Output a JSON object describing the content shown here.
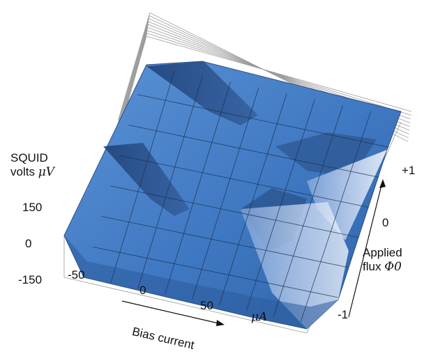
{
  "chart_data": {
    "type": "surface",
    "title": "",
    "zlabel": {
      "line1": "SQUID",
      "line2_text": "volts ",
      "line2_unit": "μV"
    },
    "xlabel": "Bias current",
    "xunit": "μA",
    "ylabel": {
      "line1": "Applied",
      "line2_text": "flux ",
      "line2_unit": "Φ0"
    },
    "z_ticks": [
      "150",
      "0",
      "-150"
    ],
    "x_ticks": [
      "-50",
      "0",
      "50"
    ],
    "y_ticks": [
      "+1",
      "0",
      "-1"
    ],
    "x_range": [
      -100,
      100
    ],
    "y_range": [
      -1.2,
      1.2
    ],
    "z_range": [
      -150,
      150
    ],
    "surface_color": "#4a82c8",
    "grid": true
  }
}
